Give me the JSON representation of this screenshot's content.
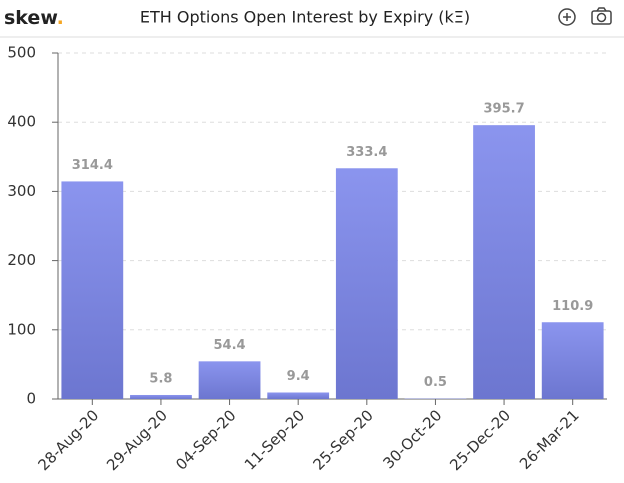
{
  "brand": {
    "name": "skew",
    "dot": "."
  },
  "chart_data": {
    "type": "bar",
    "title": "ETH Options Open Interest by Expiry (kΞ)",
    "categories": [
      "28-Aug-20",
      "29-Aug-20",
      "04-Sep-20",
      "11-Sep-20",
      "25-Sep-20",
      "30-Oct-20",
      "25-Dec-20",
      "26-Mar-21"
    ],
    "values": [
      314.4,
      5.8,
      54.4,
      9.4,
      333.4,
      0.5,
      395.7,
      110.9
    ],
    "color": "#7b86ec",
    "ylim": [
      0,
      500
    ],
    "yticks": [
      0,
      100,
      200,
      300,
      400,
      500
    ],
    "grid": true
  }
}
